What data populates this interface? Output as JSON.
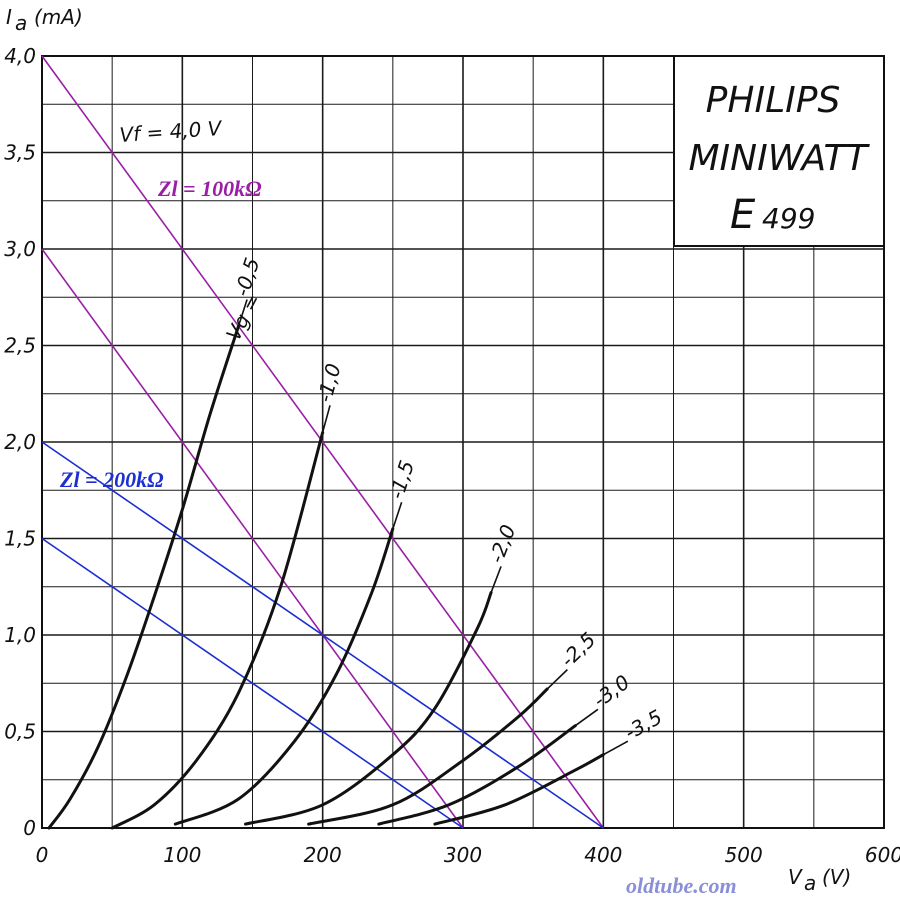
{
  "chart_data": {
    "type": "line",
    "title": "",
    "brand": {
      "line1": "PHILIPS",
      "line2": "MINIWATT",
      "model_letter": "E",
      "model_number": "499"
    },
    "ylabel": {
      "main": "I",
      "sub": "a",
      "unit": "(mA)"
    },
    "xlabel": {
      "main": "V",
      "sub": "a",
      "unit": "(V)"
    },
    "xlim": [
      0,
      600
    ],
    "ylim": [
      0,
      4.0
    ],
    "x_ticks": [
      "0",
      "100",
      "200",
      "300",
      "400",
      "500",
      "600"
    ],
    "y_ticks": [
      "0",
      "0,5",
      "1,0",
      "1,5",
      "2,0",
      "2,5",
      "3,0",
      "3,5",
      "4,0"
    ],
    "grid": true,
    "filament_label": "Vf = 4,0 V",
    "grid_voltage_prefix": "Vg =",
    "series": [
      {
        "name": "-0,5",
        "color": "#111111",
        "x": [
          5,
          20,
          40,
          60,
          80,
          100,
          120,
          140
        ],
        "y": [
          0.0,
          0.15,
          0.42,
          0.78,
          1.2,
          1.65,
          2.15,
          2.6
        ]
      },
      {
        "name": "-1,0",
        "color": "#111111",
        "x": [
          50,
          80,
          110,
          140,
          170,
          200
        ],
        "y": [
          0.0,
          0.12,
          0.35,
          0.7,
          1.25,
          2.05
        ]
      },
      {
        "name": "-1,5",
        "color": "#111111",
        "x": [
          95,
          140,
          180,
          210,
          235,
          250
        ],
        "y": [
          0.02,
          0.15,
          0.45,
          0.8,
          1.22,
          1.55
        ]
      },
      {
        "name": "-2,0",
        "color": "#111111",
        "x": [
          145,
          200,
          250,
          280,
          310,
          320
        ],
        "y": [
          0.02,
          0.12,
          0.38,
          0.62,
          1.03,
          1.22
        ]
      },
      {
        "name": "-2,5",
        "color": "#111111",
        "x": [
          190,
          250,
          300,
          340,
          360
        ],
        "y": [
          0.02,
          0.12,
          0.35,
          0.58,
          0.72
        ]
      },
      {
        "name": "-3,0",
        "color": "#111111",
        "x": [
          240,
          290,
          340,
          380
        ],
        "y": [
          0.02,
          0.12,
          0.32,
          0.53
        ]
      },
      {
        "name": "-3,5",
        "color": "#111111",
        "x": [
          280,
          330,
          380,
          400
        ],
        "y": [
          0.02,
          0.12,
          0.3,
          0.38
        ]
      }
    ],
    "load_lines": [
      {
        "name": "Zl = 100kΩ",
        "color": "#9a1fa6",
        "lines": [
          {
            "x": [
              0,
              400
            ],
            "y": [
              4.0,
              0
            ]
          },
          {
            "x": [
              0,
              300
            ],
            "y": [
              3.0,
              0
            ]
          }
        ]
      },
      {
        "name": "Zl = 200kΩ",
        "color": "#1c2fd0",
        "lines": [
          {
            "x": [
              0,
              400
            ],
            "y": [
              2.0,
              0
            ]
          },
          {
            "x": [
              0,
              300
            ],
            "y": [
              1.5,
              0
            ]
          }
        ]
      }
    ],
    "watermark": "oldtube.com",
    "watermark_color": "#8a8fd8"
  }
}
